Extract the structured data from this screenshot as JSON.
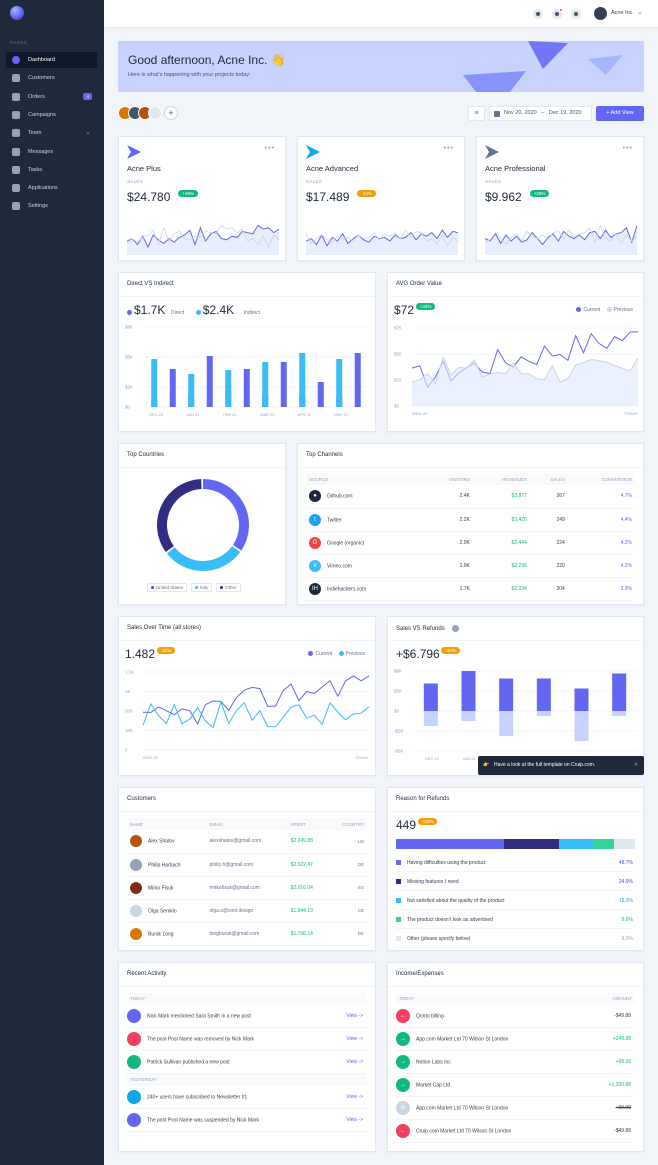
{
  "sidebar": {
    "section": "PAGES",
    "items": [
      {
        "label": "Dashboard",
        "icon": "dashboard-icon",
        "active": true
      },
      {
        "label": "Customers",
        "icon": "customers-icon"
      },
      {
        "label": "Orders",
        "icon": "orders-icon",
        "badge": "4"
      },
      {
        "label": "Campaigns",
        "icon": "campaigns-icon"
      },
      {
        "label": "Team",
        "icon": "team-icon",
        "chevron": true
      },
      {
        "label": "Messages",
        "icon": "messages-icon"
      },
      {
        "label": "Tasks",
        "icon": "tasks-icon"
      },
      {
        "label": "Applications",
        "icon": "applications-icon"
      },
      {
        "label": "Settings",
        "icon": "settings-icon"
      }
    ]
  },
  "topbar": {
    "user": "Acne Inc."
  },
  "welcome": {
    "title": "Good afternoon, Acne Inc. 👋",
    "subtitle": "Here is what’s happening with your projects today:"
  },
  "actions": {
    "date_from": "Nov 20, 2020",
    "date_to": "Dec 19, 2020",
    "add_view": "+ Add View"
  },
  "kpis": [
    {
      "name": "Acne Plus",
      "sub": "SALES",
      "value": "$24.780",
      "delta": "+49%",
      "tone": "green",
      "icon_color": "#6366f1",
      "line": [
        22,
        24,
        19,
        26,
        17,
        27,
        23,
        20,
        24,
        21,
        25,
        27,
        31,
        19,
        33,
        22,
        28,
        30,
        24,
        23,
        26,
        25,
        30,
        29,
        28,
        35,
        32,
        33,
        29,
        32
      ]
    },
    {
      "name": "Acne Advanced",
      "sub": "SALES",
      "value": "$17.489",
      "delta": "-14%",
      "tone": "amber",
      "icon_color": "#0ea5e9",
      "line": [
        22,
        24,
        19,
        27,
        18,
        25,
        22,
        28,
        20,
        24,
        27,
        23,
        21,
        26,
        24,
        25,
        22,
        27,
        24,
        25,
        29,
        23,
        28,
        26,
        29,
        24,
        31,
        25,
        30,
        29
      ]
    },
    {
      "name": "Acne Professional",
      "sub": "SALES",
      "value": "$9.962",
      "delta": "+29%",
      "tone": "green",
      "icon_color": "#64748b",
      "line": [
        24,
        22,
        28,
        20,
        27,
        22,
        26,
        21,
        23,
        29,
        24,
        19,
        25,
        28,
        22,
        30,
        26,
        24,
        27,
        23,
        29,
        30,
        24,
        31,
        25,
        28,
        29,
        33,
        21,
        35
      ]
    }
  ],
  "direct": {
    "title": "Direct VS Indirect",
    "direct_value": "$1.7K",
    "direct_label": "Direct",
    "indirect_value": "$2.4K",
    "indirect_label": "Indirect",
    "yticks": [
      "$8K",
      "$5K",
      "$2K",
      "$0"
    ]
  },
  "avg": {
    "title": "AVG Order Value",
    "value": "$72",
    "delta": "+34%",
    "current": "Current",
    "previous": "Previous",
    "yticks": [
      "$75",
      "$50",
      "$25",
      "$0"
    ],
    "x_start": "WED 20",
    "x_end": "TODAY"
  },
  "countries": {
    "title": "Top Countries",
    "legend": [
      "United States",
      "Italy",
      "Other"
    ]
  },
  "channels": {
    "title": "Top Channels",
    "headers": [
      "SOURCE",
      "VISITORS",
      "REVENUES",
      "SALES",
      "CONVERSION"
    ],
    "rows": [
      {
        "icon": "github-icon",
        "color": "#1e293b",
        "glyph": "●",
        "source": "Github.com",
        "visitors": "2.4K",
        "revenues": "$3,877",
        "sales": "267",
        "conversion": "4.7%"
      },
      {
        "icon": "twitter-icon",
        "color": "#1da1f2",
        "glyph": "t",
        "source": "Twitter",
        "visitors": "2.2K",
        "revenues": "$3,426",
        "sales": "249",
        "conversion": "4.4%"
      },
      {
        "icon": "google-icon",
        "color": "#ef4444",
        "glyph": "G",
        "source": "Google (organic)",
        "visitors": "2.0K",
        "revenues": "$2,444",
        "sales": "224",
        "conversion": "4.2%"
      },
      {
        "icon": "vimeo-icon",
        "color": "#38bdf8",
        "glyph": "v",
        "source": "Vimeo.com",
        "visitors": "1.9K",
        "revenues": "$2,236",
        "sales": "220",
        "conversion": "4.2%"
      },
      {
        "icon": "indiehackers-icon",
        "color": "#1e293b",
        "glyph": "IH",
        "source": "Indiehackers.com",
        "visitors": "1.7K",
        "revenues": "$2,034",
        "sales": "204",
        "conversion": "3.9%"
      }
    ]
  },
  "sales_time": {
    "title": "Sales Over Time (all stores)",
    "value": "1.482",
    "delta": "-22%",
    "current": "Current",
    "previous": "Previous",
    "yticks": [
      "1.5K",
      "1K",
      "500",
      "100",
      "0"
    ],
    "x_start": "WED 20",
    "x_end": "TODAY"
  },
  "refunds": {
    "title": "Sales VS Refunds",
    "value": "+$6.796",
    "delta": "-34%",
    "yticks": [
      "$8K",
      "$5K",
      "$0",
      "-$5K",
      "-$8K"
    ],
    "x_labels": [
      "DEC 20",
      "JAN 21"
    ]
  },
  "toast": {
    "text": "Have a look at the full template on Cruip.com."
  },
  "customers": {
    "title": "Customers",
    "headers": [
      "NAME",
      "EMAIL",
      "SPENT",
      "COUNTRY"
    ],
    "rows": [
      {
        "name": "Alex Shatov",
        "email": "alexshatov@gmail.com",
        "spent": "$2,249.88",
        "country": "US",
        "color": "#b45309"
      },
      {
        "name": "Philip Harbach",
        "email": "philip.h@gmail.com",
        "spent": "$2,022.47",
        "country": "DE",
        "color": "#94a3b8"
      },
      {
        "name": "Mirko Fisuk",
        "email": "mirkofisuk@gmail.com",
        "spent": "$2,016.04",
        "country": "ES",
        "color": "#7c2d12"
      },
      {
        "name": "Olga Semklo",
        "email": "olga.s@cool.design",
        "spent": "$1,944.19",
        "country": "CE",
        "color": "#cbd5e1"
      },
      {
        "name": "Burak Long",
        "email": "longburak@gmail.com",
        "spent": "$1,766.14",
        "country": "DE",
        "color": "#d97706"
      }
    ]
  },
  "reasons": {
    "title": "Reason for Refunds",
    "value": "449",
    "delta": "+22%",
    "items": [
      {
        "label": "Having difficulties using the product",
        "pct": "48.7%",
        "value": 48.7,
        "color": "#6366f1"
      },
      {
        "label": "Missing features I need",
        "pct": "24.9%",
        "value": 24.9,
        "color": "#312e81"
      },
      {
        "label": "Not satisfied about the quality of the product",
        "pct": "15.3%",
        "value": 15.3,
        "color": "#38bdf8"
      },
      {
        "label": "The product doesn’t look as advertised",
        "pct": "9.6%",
        "value": 9.6,
        "color": "#34d399"
      },
      {
        "label": "Other (please specify below)",
        "pct": "9.3%",
        "value": 9.3,
        "color": "#e2e8f0"
      }
    ]
  },
  "activity": {
    "title": "Recent Activity",
    "today": "TODAY",
    "yesterday": "YESTERDAY",
    "view": "View ->",
    "today_items": [
      {
        "text": "Nick Mark mentioned Sara Smith in a new post",
        "color": "#6366f1",
        "icon": "mention-icon"
      },
      {
        "text": "The post Post Name was removed by Nick Mark",
        "color": "#f43f5e",
        "icon": "trash-icon"
      },
      {
        "text": "Patrick Sullivan published a new post",
        "color": "#10b981",
        "icon": "publish-icon"
      }
    ],
    "yesterday_items": [
      {
        "text": "240+ users have subscribed to Newsletter #1",
        "color": "#0ea5e9",
        "icon": "shuffle-icon"
      },
      {
        "text": "The post Post Name was suspended by Nick Mark",
        "color": "#6366f1",
        "icon": "suspend-icon"
      }
    ]
  },
  "income": {
    "title": "Income/Expenses",
    "today": "TODAY",
    "amount": "AMOUNT",
    "rows": [
      {
        "text": "Qonto billing",
        "amount": "-$49.88",
        "color": "#f43f5e",
        "arrow": "←",
        "tone": "neg"
      },
      {
        "text": "App.com Market Ltd 70 Wilson St London",
        "amount": "+249.88",
        "color": "#10b981",
        "arrow": "→",
        "tone": "pos"
      },
      {
        "text": "Notion Labs Inc",
        "amount": "+99.99",
        "color": "#10b981",
        "arrow": "→",
        "tone": "pos"
      },
      {
        "text": "Market Cap Ltd",
        "amount": "+1,200.88",
        "color": "#10b981",
        "arrow": "→",
        "tone": "pos"
      },
      {
        "text": "App.com Market Ltd 70 Wilson St London",
        "amount": "+99.99",
        "color": "#cbd5e1",
        "arrow": "⊘",
        "tone": "strike"
      },
      {
        "text": "Cruip.com Market Ltd 70 Wilson St London",
        "amount": "-$49.88",
        "color": "#f43f5e",
        "arrow": "←",
        "tone": "neg"
      }
    ]
  },
  "chart_data": [
    {
      "type": "bar",
      "title": "Direct VS Indirect",
      "categories": [
        "DEC 20",
        "",
        "JAN 21",
        "",
        "FEB 21",
        "",
        "MAR 21",
        "",
        "APR 21",
        "",
        "MAY 21",
        ""
      ],
      "series": [
        {
          "name": "Direct",
          "values": [
            800,
            3800,
            1200,
            5100,
            1600,
            3800,
            1000,
            4500,
            1200,
            2500,
            1100,
            5400
          ]
        },
        {
          "name": "Indirect",
          "values": [
            4800,
            1200,
            3300,
            500,
            3700,
            1800,
            4500,
            1800,
            5400,
            1200,
            4800,
            400
          ]
        }
      ],
      "ylim": [
        0,
        8000
      ]
    },
    {
      "type": "line",
      "title": "AVG Order Value",
      "series": [
        {
          "name": "Current"
        },
        {
          "name": "Previous"
        }
      ],
      "x_start": "WED 20",
      "x_end": "TODAY"
    },
    {
      "type": "pie",
      "title": "Top Countries",
      "categories": [
        "United States",
        "Italy",
        "Other"
      ],
      "values": [
        35,
        30,
        35
      ]
    },
    {
      "type": "line",
      "title": "Sales Over Time (all stores)",
      "series": [
        {
          "name": "Current"
        },
        {
          "name": "Previous"
        }
      ],
      "x_start": "WED 20",
      "x_end": "TODAY"
    },
    {
      "type": "bar",
      "title": "Sales VS Refunds",
      "series": [
        {
          "name": "Sales",
          "values": [
            5.5,
            8,
            6.5,
            6.5,
            4.5,
            7.5
          ]
        },
        {
          "name": "Refunds",
          "values": [
            -3,
            -2,
            -5,
            -1,
            -6,
            -1
          ]
        }
      ],
      "ylim": [
        -8,
        8
      ]
    }
  ]
}
